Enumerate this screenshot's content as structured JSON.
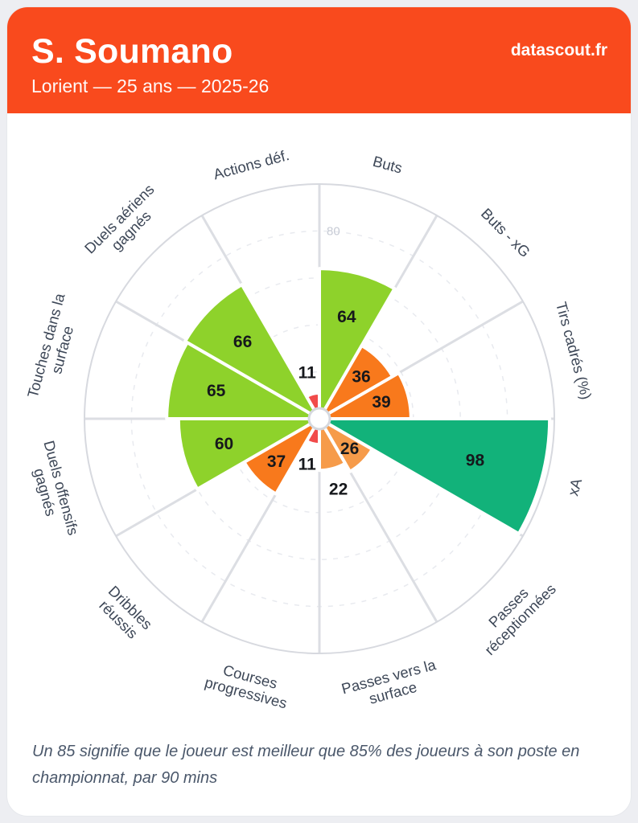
{
  "header": {
    "title": "S. Soumano",
    "subtitle": "Lorient — 25 ans — 2025-26",
    "brand": "datascout.fr"
  },
  "chart_data": {
    "type": "bar",
    "subtype": "polar-pizza",
    "direction": "clockwise",
    "start": "top",
    "rlim": [
      0,
      100
    ],
    "grid_ticks": [
      20,
      40,
      60,
      80
    ],
    "visible_tick_label": "80",
    "slices": [
      {
        "slug": "buts",
        "label": "Buts",
        "lines": [
          "Buts"
        ],
        "value": 64,
        "color": "#8ed22b"
      },
      {
        "slug": "buts-xg",
        "label": "Buts - xG",
        "lines": [
          "Buts - xG"
        ],
        "value": 36,
        "color": "#f8791c"
      },
      {
        "slug": "tirs-cadres",
        "label": "Tirs cadrés (%)",
        "lines": [
          "Tirs cadrés (%)"
        ],
        "value": 39,
        "color": "#f8791c"
      },
      {
        "slug": "xa",
        "label": "xA",
        "lines": [
          "xA"
        ],
        "value": 98,
        "color": "#12b27a"
      },
      {
        "slug": "passes-receptionnees",
        "label": "Passes réceptionnées",
        "lines": [
          "Passes",
          "réceptionnées"
        ],
        "value": 26,
        "color": "#f69b4a"
      },
      {
        "slug": "passes-vers-la-surface",
        "label": "Passes vers la surface",
        "lines": [
          "Passes vers la",
          "surface"
        ],
        "value": 22,
        "color": "#f69b4a"
      },
      {
        "slug": "courses-progressives",
        "label": "Courses progressives",
        "lines": [
          "Courses",
          "progressives"
        ],
        "value": 11,
        "color": "#f14b4a"
      },
      {
        "slug": "dribbles-reussis",
        "label": "Dribbles réussis",
        "lines": [
          "Dribbles",
          "réussis"
        ],
        "value": 37,
        "color": "#f8791c"
      },
      {
        "slug": "duels-offensifs-gagnes",
        "label": "Duels offensifs gagnés",
        "lines": [
          "Duels offensifs",
          "gagnés"
        ],
        "value": 60,
        "color": "#8ed22b"
      },
      {
        "slug": "touches-dans-la-surface",
        "label": "Touches dans la surface",
        "lines": [
          "Touches dans la",
          "surface"
        ],
        "value": 65,
        "color": "#8ed22b"
      },
      {
        "slug": "duels-aeriens-gagnes",
        "label": "Duels aériens gagnés",
        "lines": [
          "Duels aériens",
          "gagnés"
        ],
        "value": 66,
        "color": "#8ed22b"
      },
      {
        "slug": "actions-def",
        "label": "Actions déf.",
        "lines": [
          "Actions déf."
        ],
        "value": 11,
        "color": "#f14b4a"
      }
    ],
    "theme": {
      "header_bg": "#f94a1d",
      "grid_dashed": "#e8eaef",
      "spoke": "#dcdee3",
      "outer_ring": "#d7d9df",
      "tick_text": "#c7cbd5",
      "category_text": "#3d4757",
      "value_text": "#16181c",
      "slice_border": "#ffffff",
      "center_hole_ring": "#d5d8de"
    }
  },
  "footer": {
    "note": "Un 85 signifie que le joueur est meilleur que 85% des joueurs à son poste en championnat, par 90 mins"
  }
}
